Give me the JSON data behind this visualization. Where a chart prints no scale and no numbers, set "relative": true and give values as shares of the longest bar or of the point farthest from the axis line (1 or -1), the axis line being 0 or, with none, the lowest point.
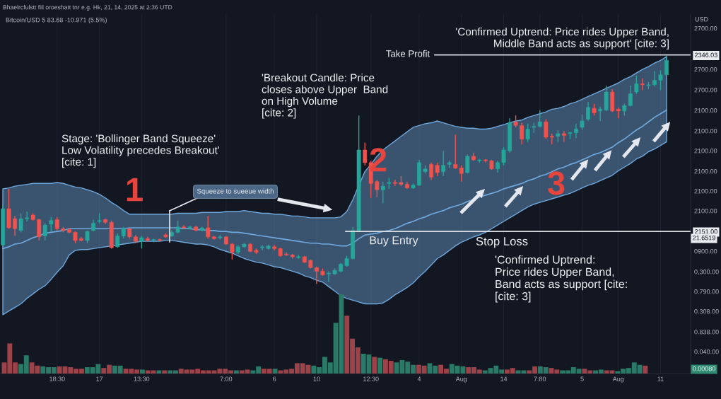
{
  "chart_data": [
    {
      "type": "candlestick",
      "title": "Bhaelrcfulstt fiil oroeshatt tnr e.g. Hk, 21, 14, 2025 at 2:36 UTD",
      "subtitle": "Bitcoin/USD 5 83.68 -10.971 (5.5%)",
      "ylabel": "USD",
      "categories": [
        null,
        null,
        null,
        null,
        null,
        null,
        null,
        null,
        null,
        "18:30",
        null,
        null,
        null,
        null,
        null,
        null,
        "17",
        null,
        null,
        null,
        null,
        null,
        null,
        "13:30",
        null,
        null,
        null,
        null,
        null,
        null,
        null,
        null,
        null,
        null,
        null,
        null,
        null,
        "7:00",
        null,
        null,
        null,
        null,
        null,
        null,
        null,
        "6",
        null,
        null,
        null,
        null,
        null,
        null,
        "10",
        null,
        null,
        null,
        null,
        null,
        null,
        null,
        null,
        "12:30",
        null,
        null,
        null,
        null,
        null,
        null,
        null,
        "4",
        null,
        null,
        null,
        null,
        null,
        null,
        "Aug",
        null,
        null,
        null,
        null,
        null,
        null,
        "14",
        null,
        null,
        null,
        null,
        null,
        "7:80",
        null,
        null,
        null,
        null,
        null,
        null,
        "5",
        null,
        null,
        null,
        null,
        null,
        "Aug",
        null,
        null,
        null,
        null,
        null,
        null,
        "11",
        null
      ],
      "series": [
        {
          "type": "line",
          "color": "#6fa8dc",
          "values": [
            2132,
            2134,
            2137,
            2138,
            2141,
            2144,
            2146,
            2149,
            2150,
            2151,
            2152,
            2154,
            2154,
            2154,
            2154,
            2154,
            2154,
            2154,
            2154,
            2154,
            2154,
            2155,
            2155,
            2155,
            2155,
            2155,
            2155,
            2155,
            2155,
            2155,
            2154,
            2154,
            2153,
            2153,
            2152,
            2152,
            2151,
            2151,
            2150,
            2150,
            2149,
            2148,
            2147,
            2146,
            2145,
            2144,
            2143,
            2142,
            2141,
            2140,
            2139,
            2138,
            2138,
            2137,
            2137,
            2136,
            2135,
            2135,
            2138,
            2143,
            2147,
            2148,
            2149,
            2151,
            2152,
            2154,
            2157,
            2160,
            2162,
            2165,
            2167,
            2170,
            2172,
            2174,
            2177,
            2179,
            2181,
            2184,
            2186,
            2189,
            2191,
            2193,
            2195,
            2198,
            2200,
            2202,
            2204,
            2207,
            2209,
            2212,
            2214,
            2217,
            2220,
            2222,
            2225,
            2227,
            2230,
            2233,
            2236,
            2238,
            2241,
            2244,
            2249,
            2253,
            2258,
            2263,
            2267,
            2272,
            2277,
            2281,
            2285
          ],
          "lower": [
            2059,
            2063,
            2067,
            2071,
            2077,
            2082,
            2087,
            2091,
            2098,
            2106,
            2113,
            2125,
            2130,
            2131,
            2131,
            2132,
            2133,
            2134,
            2135,
            2136,
            2137,
            2138,
            2139,
            2140,
            2140,
            2140,
            2140,
            2141,
            2141,
            2140,
            2139,
            2138,
            2137,
            2137,
            2136,
            2134,
            2131,
            2129,
            2127,
            2124,
            2121,
            2119,
            2117,
            2116,
            2114,
            2112,
            2111,
            2109,
            2107,
            2105,
            2102,
            2100,
            2097,
            2095,
            2090,
            2085,
            2080,
            2077,
            2075,
            2073,
            2071,
            2071,
            2071,
            2072,
            2076,
            2081,
            2085,
            2089,
            2094,
            2101,
            2107,
            2114,
            2121,
            2125,
            2130,
            2135,
            2139,
            2142,
            2145,
            2147,
            2150,
            2154,
            2158,
            2162,
            2166,
            2170,
            2174,
            2178,
            2181,
            2183,
            2185,
            2187,
            2189,
            2191,
            2193,
            2196,
            2199,
            2202,
            2204,
            2207,
            2210,
            2213,
            2218,
            2222,
            2226,
            2231,
            2234,
            2239,
            2242,
            2246,
            2250
          ],
          "upper": [
            2198,
            2199,
            2201,
            2202,
            2203,
            2204,
            2204,
            2204,
            2204,
            2205,
            2204,
            2202,
            2200,
            2199,
            2197,
            2195,
            2192,
            2188,
            2183,
            2179,
            2174,
            2170,
            2170,
            2170,
            2170,
            2170,
            2170,
            2170,
            2170,
            2171,
            2171,
            2171,
            2171,
            2172,
            2172,
            2172,
            2172,
            2173,
            2173,
            2173,
            2174,
            2173,
            2172,
            2171,
            2171,
            2170,
            2170,
            2169,
            2168,
            2168,
            2167,
            2166,
            2166,
            2166,
            2166,
            2166,
            2167,
            2173,
            2186,
            2202,
            2217,
            2225,
            2234,
            2241,
            2246,
            2251,
            2256,
            2261,
            2266,
            2268,
            2270,
            2271,
            2273,
            2271,
            2269,
            2267,
            2266,
            2265,
            2265,
            2264,
            2264,
            2265,
            2267,
            2269,
            2271,
            2273,
            2274,
            2277,
            2279,
            2281,
            2283,
            2286,
            2287,
            2289,
            2292,
            2294,
            2297,
            2300,
            2303,
            2306,
            2309,
            2312,
            2315,
            2319,
            2322,
            2326,
            2330,
            2333,
            2337,
            2340,
            2344
          ]
        },
        {
          "type": "candlestick",
          "ohlc": [
            [
              2136,
              2180,
              2134,
              2176
            ],
            [
              2176,
              2198,
              2154,
              2155
            ],
            [
              2165,
              2168,
              2146,
              2154
            ],
            [
              2152,
              2171,
              2150,
              2165
            ],
            [
              2165,
              2173,
              2162,
              2166
            ],
            [
              2169,
              2171,
              2163,
              2164
            ],
            [
              2164,
              2165,
              2141,
              2145
            ],
            [
              2146,
              2160,
              2141,
              2158
            ],
            [
              2159,
              2167,
              2151,
              2163
            ],
            [
              2164,
              2167,
              2152,
              2154
            ],
            [
              2154,
              2156,
              2150,
              2152
            ],
            [
              2153,
              2155,
              2149,
              2150
            ],
            [
              2150,
              2151,
              2138,
              2141
            ],
            [
              2143,
              2145,
              2140,
              2141
            ],
            [
              2141,
              2152,
              2138,
              2151
            ],
            [
              2152,
              2164,
              2151,
              2160
            ],
            [
              2162,
              2171,
              2160,
              2163
            ],
            [
              2164,
              2165,
              2159,
              2161
            ],
            [
              2161,
              2163,
              2132,
              2133
            ],
            [
              2134,
              2149,
              2133,
              2146
            ],
            [
              2146,
              2156,
              2143,
              2154
            ],
            [
              2154,
              2155,
              2143,
              2145
            ],
            [
              2145,
              2147,
              2138,
              2140
            ],
            [
              2140,
              2146,
              2132,
              2144
            ],
            [
              2143,
              2145,
              2140,
              2141
            ],
            [
              2141,
              2143,
              2139,
              2142
            ],
            [
              2142,
              2143,
              2140,
              2141
            ],
            [
              2147,
              2149,
              2144,
              2145
            ],
            [
              2146,
              2152,
              2145,
              2150
            ],
            [
              2150,
              2163,
              2149,
              2156
            ],
            [
              2156,
              2158,
              2154,
              2155
            ],
            [
              2155,
              2157,
              2153,
              2156
            ],
            [
              2156,
              2157,
              2151,
              2152
            ],
            [
              2152,
              2156,
              2151,
              2155
            ],
            [
              2155,
              2168,
              2143,
              2145
            ],
            [
              2145,
              2146,
              2142,
              2143
            ],
            [
              2144,
              2147,
              2142,
              2145
            ],
            [
              2145,
              2146,
              2136,
              2137
            ],
            [
              2137,
              2138,
              2120,
              2128
            ],
            [
              2128,
              2136,
              2126,
              2134
            ],
            [
              2134,
              2138,
              2133,
              2137
            ],
            [
              2137,
              2138,
              2128,
              2129
            ],
            [
              2130,
              2132,
              2126,
              2128
            ],
            [
              2133,
              2136,
              2130,
              2134
            ],
            [
              2132,
              2136,
              2131,
              2135
            ],
            [
              2134,
              2136,
              2130,
              2132
            ],
            [
              2132,
              2133,
              2123,
              2124
            ],
            [
              2126,
              2128,
              2124,
              2125
            ],
            [
              2125,
              2126,
              2121,
              2123
            ],
            [
              2122,
              2125,
              2121,
              2123
            ],
            [
              2123,
              2124,
              2116,
              2117
            ],
            [
              2119,
              2120,
              2110,
              2111
            ],
            [
              2111,
              2112,
              2093,
              2107
            ],
            [
              2107,
              2110,
              2102,
              2103
            ],
            [
              2104,
              2107,
              2095,
              2105
            ],
            [
              2104,
              2110,
              2103,
              2108
            ],
            [
              2107,
              2116,
              2106,
              2115
            ],
            [
              2113,
              2124,
              2112,
              2121
            ],
            [
              2121,
              2156,
              2120,
              2152
            ],
            [
              2152,
              2279,
              2151,
              2241
            ],
            [
              2241,
              2249,
              2224,
              2227
            ],
            [
              2227,
              2229,
              2188,
              2204
            ],
            [
              2206,
              2208,
              2189,
              2197
            ],
            [
              2197,
              2206,
              2182,
              2201
            ],
            [
              2204,
              2210,
              2198,
              2205
            ],
            [
              2205,
              2208,
              2201,
              2204
            ],
            [
              2205,
              2212,
              2201,
              2203
            ],
            [
              2203,
              2206,
              2198,
              2199
            ],
            [
              2199,
              2204,
              2198,
              2202
            ],
            [
              2202,
              2230,
              2201,
              2227
            ],
            [
              2217,
              2224,
              2215,
              2220
            ],
            [
              2225,
              2227,
              2208,
              2211
            ],
            [
              2224,
              2227,
              2212,
              2216
            ],
            [
              2217,
              2240,
              2212,
              2224
            ],
            [
              2225,
              2229,
              2221,
              2227
            ],
            [
              2225,
              2258,
              2220,
              2221
            ],
            [
              2221,
              2224,
              2206,
              2215
            ],
            [
              2216,
              2236,
              2215,
              2234
            ],
            [
              2234,
              2238,
              2229,
              2230
            ],
            [
              2229,
              2231,
              2227,
              2230
            ],
            [
              2230,
              2231,
              2227,
              2229
            ],
            [
              2229,
              2230,
              2219,
              2220
            ],
            [
              2220,
              2229,
              2216,
              2227
            ],
            [
              2227,
              2244,
              2224,
              2241
            ],
            [
              2240,
              2276,
              2238,
              2271
            ],
            [
              2272,
              2279,
              2266,
              2268
            ],
            [
              2268,
              2271,
              2247,
              2253
            ],
            [
              2253,
              2270,
              2250,
              2264
            ],
            [
              2266,
              2271,
              2260,
              2267
            ],
            [
              2267,
              2285,
              2266,
              2272
            ],
            [
              2272,
              2275,
              2253,
              2255
            ],
            [
              2256,
              2259,
              2247,
              2255
            ],
            [
              2256,
              2263,
              2250,
              2259
            ],
            [
              2259,
              2262,
              2250,
              2257
            ],
            [
              2259,
              2261,
              2253,
              2260
            ],
            [
              2260,
              2270,
              2254,
              2264
            ],
            [
              2266,
              2280,
              2263,
              2273
            ],
            [
              2275,
              2294,
              2273,
              2288
            ],
            [
              2287,
              2292,
              2279,
              2282
            ],
            [
              2284,
              2289,
              2273,
              2286
            ],
            [
              2285,
              2312,
              2284,
              2305
            ],
            [
              2305,
              2308,
              2283,
              2284
            ],
            [
              2286,
              2288,
              2276,
              2284
            ],
            [
              2284,
              2292,
              2279,
              2290
            ],
            [
              2290,
              2312,
              2289,
              2303
            ],
            [
              2305,
              2323,
              2303,
              2314
            ],
            [
              2314,
              2320,
              2307,
              2313
            ],
            [
              2312,
              2316,
              2308,
              2313
            ],
            [
              2313,
              2328,
              2311,
              2318
            ],
            [
              2318,
              2329,
              2307,
              2324
            ],
            [
              2324,
              2345,
              2323,
              2340
            ]
          ],
          "colors": [
            "#26a69a",
            "#ef5350",
            "#ef5350",
            "#26a69a",
            "#26a69a",
            "#ef5350",
            "#ef5350",
            "#26a69a",
            "#26a69a",
            "#ef5350",
            "#ef5350",
            "#ef5350",
            "#ef5350",
            "#ef5350",
            "#26a69a",
            "#26a69a",
            "#26a69a",
            "#ef5350",
            "#ef5350",
            "#26a69a",
            "#26a69a",
            "#ef5350",
            "#ef5350",
            "#26a69a",
            "#ef5350",
            "#26a69a",
            "#ef5350",
            "#ef5350",
            "#26a69a",
            "#26a69a",
            "#ef5350",
            "#26a69a",
            "#ef5350",
            "#26a69a",
            "#ef5350",
            "#ef5350",
            "#26a69a",
            "#ef5350",
            "#ef5350",
            "#26a69a",
            "#26a69a",
            "#ef5350",
            "#ef5350",
            "#26a69a",
            "#26a69a",
            "#ef5350",
            "#ef5350",
            "#ef5350",
            "#ef5350",
            "#26a69a",
            "#ef5350",
            "#ef5350",
            "#ef5350",
            "#ef5350",
            "#26a69a",
            "#26a69a",
            "#26a69a",
            "#26a69a",
            "#26a69a",
            "#26a69a",
            "#ef5350",
            "#ef5350",
            "#ef5350",
            "#26a69a",
            "#26a69a",
            "#ef5350",
            "#ef5350",
            "#ef5350",
            "#26a69a",
            "#26a69a",
            "#26a69a",
            "#ef5350",
            "#ef5350",
            "#26a69a",
            "#26a69a",
            "#ef5350",
            "#ef5350",
            "#26a69a",
            "#ef5350",
            "#26a69a",
            "#ef5350",
            "#ef5350",
            "#26a69a",
            "#26a69a",
            "#26a69a",
            "#ef5350",
            "#ef5350",
            "#26a69a",
            "#26a69a",
            "#26a69a",
            "#ef5350",
            "#ef5350",
            "#26a69a",
            "#ef5350",
            "#26a69a",
            "#26a69a",
            "#26a69a",
            "#26a69a",
            "#ef5350",
            "#26a69a",
            "#26a69a",
            "#ef5350",
            "#ef5350",
            "#26a69a",
            "#26a69a",
            "#26a69a",
            "#ef5350",
            "#26a69a",
            "#26a69a",
            "#26a69a",
            "#26a69a"
          ]
        }
      ],
      "ylim": [
        1994,
        2391
      ],
      "yticks": [
        2346.03,
        {
          "value": 2151,
          "label": "2151.00"
        }
      ],
      "ref_lines": [
        {
          "axis": "y",
          "value": 2346.03,
          "label": "Take Profit",
          "color": "#d9dce3"
        },
        {
          "axis": "y",
          "value": 2151,
          "label": "Buy Entry",
          "color": "#d9dce3"
        }
      ],
      "annotations": [
        "Stage: 'Bollinger Band Squeeze'\nLow Volatility precedes Breakout'\n[cite: 1]",
        "1",
        "Squeeze to sueeue width",
        "'Breakout Candle: Price\ncloses above Upper  Band\non High Volume\n[cite: 2]",
        "2",
        "'Confirmed Uptrend: Price rides Upper Band,\nMiddle Band acts as support' [cite: 3]",
        "'Confirmed Uptrend:\nPrice rides Upper Band,\nBand acts as support [cite:\n[cite: 3]",
        "3",
        "21.6519",
        {
          "text": "Stop Loss",
          "y": 2151
        },
        "2700.00",
        "2700.00",
        "2700.00",
        "2100.00",
        "2100.00",
        "2100.00",
        "2100.00",
        "2100.00",
        "2100.00",
        "0900.00",
        "0,300.00",
        "0.790.00",
        "0.308.00",
        "0.838.00",
        "0.040.00"
      ],
      "grid": "x"
    },
    {
      "type": "bar",
      "relative": true,
      "tick_labels": false,
      "categories": [
        null,
        null,
        null,
        null,
        null,
        null,
        null,
        null,
        null,
        null,
        null,
        null,
        null,
        null,
        null,
        null,
        null,
        null,
        null,
        null,
        null,
        null,
        null,
        null,
        null,
        null,
        null,
        null,
        null,
        null,
        null,
        null,
        null,
        null,
        null,
        null,
        null,
        null,
        null,
        null,
        null,
        null,
        null,
        null,
        null,
        null,
        null,
        null,
        null,
        null,
        null,
        null,
        null,
        null,
        null,
        null,
        null,
        null,
        null,
        null,
        null,
        null,
        null,
        null,
        null,
        null,
        null,
        null,
        null,
        null,
        null,
        null,
        null,
        null,
        null,
        null,
        null,
        null,
        null,
        null,
        null,
        null,
        null,
        null,
        null,
        null,
        null,
        null,
        null,
        null,
        null,
        null,
        null,
        null,
        null,
        null,
        null,
        null,
        null,
        null,
        null,
        null,
        null,
        null,
        null,
        null,
        null,
        null,
        null,
        null,
        null,
        null,
        null,
        null,
        null,
        null,
        null
      ],
      "values": [
        0.14,
        0.38,
        0.14,
        0.12,
        0.23,
        0.14,
        0.1,
        0.09,
        0.08,
        0.08,
        0.09,
        0.09,
        0.08,
        0.06,
        0.06,
        0.08,
        0.08,
        0.12,
        0.07,
        0.11,
        0.1,
        0.1,
        0.06,
        0.06,
        0.05,
        0.05,
        0.04,
        0.04,
        0.04,
        0.04,
        0.04,
        0.04,
        0.06,
        0.05,
        0.05,
        0.06,
        0.04,
        0.04,
        0.04,
        0.06,
        0.06,
        0.04,
        0.04,
        0.04,
        0.05,
        0.04,
        0.09,
        0.06,
        0.06,
        0.06,
        0.04,
        0.05,
        0.06,
        0.13,
        0.13,
        0.11,
        0.1,
        0.08,
        0.21,
        0.14,
        0.64,
        1,
        0.73,
        0.44,
        0.33,
        0.25,
        0.24,
        0.21,
        0.2,
        0.18,
        0.16,
        0.14,
        0.17,
        0.15,
        0.11,
        0.11,
        0.1,
        0.13,
        0.1,
        0.11,
        0.06,
        0.12,
        0.1,
        0.09,
        0.08,
        0.08,
        0.05,
        0.04,
        0.07,
        0.1,
        0.05,
        0.05,
        0.07,
        0.04,
        0.04,
        0.04,
        0.09,
        0.09,
        0.08,
        0.07,
        0.05,
        0.04,
        0.04,
        0.08,
        0.06,
        0.06,
        0.04,
        0.04,
        0.05,
        0.04,
        0.04,
        0.03,
        0.06,
        0.07,
        0.14,
        0.11,
        0.1
      ],
      "colors": [
        "#9c4248",
        "#9c4248",
        "#9c4248",
        "#2b7a67",
        "#2b7a67",
        "#9c4248",
        "#9c4248",
        "#2b7a67",
        "#2b7a67",
        "#2b7a67",
        "#9c4248",
        "#9c4248",
        "#9c4248",
        "#9c4248",
        "#9c4248",
        "#2b7a67",
        "#2b7a67",
        "#2b7a67",
        "#9c4248",
        "#9c4248",
        "#2b7a67",
        "#2b7a67",
        "#9c4248",
        "#9c4248",
        "#9c4248",
        "#2b7a67",
        "#9c4248",
        "#9c4248",
        "#2b7a67",
        "#9c4248",
        "#2b7a67",
        "#2b7a67",
        "#9c4248",
        "#9c4248",
        "#9c4248",
        "#9c4248",
        "#9c4248",
        "#9c4248",
        "#9c4248",
        "#9c4248",
        "#9c4248",
        "#9c4248",
        "#2b7a67",
        "#9c4248",
        "#9c4248",
        "#2b7a67",
        "#2b7a67",
        "#9c4248",
        "#9c4248",
        "#2b7a67",
        "#9c4248",
        "#9c4248",
        "#9c4248",
        "#9c4248",
        "#9c4248",
        "#9c4248",
        "#2b7a67",
        "#2b7a67",
        "#2b7a67",
        "#2b7a67",
        "#2b7a67",
        "#2b7a67",
        "#9c4248",
        "#9c4248",
        "#9c4248",
        "#2b7a67",
        "#2b7a67",
        "#9c4248",
        "#2b7a67",
        "#9c4248",
        "#9c4248",
        "#2b7a67",
        "#2b7a67",
        "#2b7a67",
        "#2b7a67",
        "#9c4248",
        "#9c4248",
        "#2b7a67",
        "#2b7a67",
        "#9c4248",
        "#9c4248",
        "#2b7a67",
        "#2b7a67",
        "#2b7a67",
        "#9c4248",
        "#9c4248",
        "#9c4248",
        "#2b7a67",
        "#2b7a67",
        "#2b7a67",
        "#2b7a67",
        "#9c4248",
        "#9c4248",
        "#2b7a67",
        "#2b7a67",
        "#9c4248",
        "#9c4248",
        "#2b7a67",
        "#2b7a67",
        "#9c4248",
        "#9c4248",
        "#2b7a67",
        "#2b7a67",
        "#2b7a67",
        "#2b7a67",
        "#9c4248",
        "#9c4248",
        "#2b7a67",
        "#2b7a67",
        "#9c4248",
        "#9c4248",
        "#2b7a67",
        "#2b7a67",
        "#2b7a67",
        "#2b7a67",
        "#2b7a67",
        "#9c4248"
      ],
      "annotations": [
        "0.00080"
      ]
    }
  ]
}
